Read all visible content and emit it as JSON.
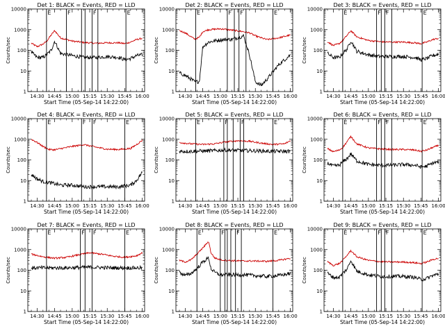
{
  "figure": {
    "background": "#ffffff",
    "axis_color": "#000000",
    "events_color": "#000000",
    "lld_color": "#cc0000",
    "xaxis_title": "Start Time (05-Sep-14 14:22:00)",
    "ylabel": "Counts/sec",
    "x_tick_labels": [
      "14:30",
      "14:45",
      "15:00",
      "15:15",
      "15:30",
      "15:45",
      "16:00"
    ],
    "y_tick_labels": [
      "1",
      "10",
      "100",
      "1000",
      "10000"
    ]
  },
  "chart_data": [
    {
      "type": "line",
      "title": "Det 1: BLACK = Events, RED = LLD",
      "xlabel": "Start Time (05-Sep-14 14:22:00)",
      "ylabel": "Counts/sec",
      "xlim": [
        "14:22",
        "16:02"
      ],
      "ylim": [
        1,
        10000
      ],
      "y_scale": "log",
      "x": [
        "14:25",
        "14:30",
        "14:35",
        "14:38",
        "14:42",
        "14:45",
        "14:50",
        "15:00",
        "15:10",
        "15:20",
        "15:30",
        "15:40",
        "15:45",
        "15:50",
        "15:55",
        "16:00"
      ],
      "series": [
        {
          "name": "Events",
          "values": [
            80,
            45,
            45,
            60,
            100,
            280,
            70,
            55,
            45,
            45,
            50,
            45,
            35,
            40,
            55,
            60
          ]
        },
        {
          "name": "LLD",
          "values": [
            220,
            150,
            200,
            270,
            550,
            900,
            400,
            280,
            240,
            220,
            230,
            230,
            210,
            250,
            330,
            380
          ]
        }
      ],
      "markers": {
        "times": [
          "14:38",
          "14:55",
          "15:08",
          "15:11",
          "15:17",
          "15:22",
          "15:46"
        ],
        "labels": [
          "E",
          "F",
          "",
          "",
          "F",
          "",
          "E"
        ]
      },
      "grid": false
    },
    {
      "type": "line",
      "title": "Det 2: BLACK = Events, RED = LLD",
      "xlabel": "Start Time (05-Sep-14 14:22:00)",
      "ylabel": "Counts/sec",
      "xlim": [
        "14:22",
        "16:02"
      ],
      "ylim": [
        1,
        10000
      ],
      "y_scale": "log",
      "x": [
        "14:25",
        "14:30",
        "14:35",
        "14:38",
        "14:42",
        "14:45",
        "14:50",
        "15:00",
        "15:10",
        "15:20",
        "15:25",
        "15:30",
        "15:35",
        "15:40",
        "15:50",
        "16:00"
      ],
      "series": [
        {
          "name": "Events",
          "values": [
            8,
            6,
            4,
            3,
            3,
            150,
            250,
            320,
            340,
            500,
            60,
            3,
            2,
            4,
            20,
            60
          ]
        },
        {
          "name": "LLD",
          "values": [
            900,
            700,
            450,
            350,
            420,
            800,
            1000,
            1100,
            950,
            800,
            700,
            500,
            400,
            330,
            400,
            550
          ]
        }
      ],
      "markers": {
        "times": [
          "14:39",
          "15:06",
          "15:12",
          "15:16",
          "15:22",
          "15:45"
        ],
        "labels": [
          "E",
          "F",
          "",
          "F",
          "",
          "E"
        ]
      },
      "grid": false
    },
    {
      "type": "line",
      "title": "Det 3: BLACK = Events, RED = LLD",
      "xlabel": "Start Time (05-Sep-14 14:22:00)",
      "ylabel": "Counts/sec",
      "xlim": [
        "14:22",
        "16:02"
      ],
      "ylim": [
        1,
        10000
      ],
      "y_scale": "log",
      "x": [
        "14:25",
        "14:30",
        "14:35",
        "14:38",
        "14:42",
        "14:45",
        "14:50",
        "15:00",
        "15:10",
        "15:20",
        "15:30",
        "15:40",
        "15:45",
        "15:50",
        "15:55",
        "16:00"
      ],
      "series": [
        {
          "name": "Events",
          "values": [
            70,
            45,
            45,
            70,
            120,
            300,
            90,
            60,
            50,
            50,
            50,
            45,
            35,
            40,
            55,
            65
          ]
        },
        {
          "name": "LLD",
          "values": [
            260,
            170,
            210,
            300,
            550,
            900,
            450,
            300,
            260,
            250,
            250,
            230,
            210,
            250,
            330,
            380
          ]
        }
      ],
      "markers": {
        "times": [
          "14:38",
          "15:07",
          "15:11",
          "15:14",
          "15:20",
          "15:46"
        ],
        "labels": [
          "E",
          "F",
          "",
          "F",
          "",
          "E"
        ]
      },
      "grid": false
    },
    {
      "type": "line",
      "title": "Det 4: BLACK = Events, RED = LLD",
      "xlabel": "Start Time (05-Sep-14 14:22:00)",
      "ylabel": "Counts/sec",
      "xlim": [
        "14:22",
        "16:02"
      ],
      "ylim": [
        1,
        10000
      ],
      "y_scale": "log",
      "x": [
        "14:25",
        "14:30",
        "14:35",
        "14:40",
        "14:45",
        "14:50",
        "15:00",
        "15:10",
        "15:20",
        "15:30",
        "15:40",
        "15:50",
        "15:55",
        "16:00"
      ],
      "series": [
        {
          "name": "Events",
          "values": [
            20,
            12,
            9,
            8,
            7,
            6,
            6,
            5,
            5,
            5,
            5,
            6,
            10,
            25
          ]
        },
        {
          "name": "LLD",
          "values": [
            1000,
            700,
            450,
            320,
            310,
            350,
            450,
            550,
            420,
            330,
            320,
            360,
            550,
            900
          ]
        }
      ],
      "markers": {
        "times": [
          "14:38",
          "15:08",
          "15:17",
          "15:45"
        ],
        "labels": [
          "E",
          "F",
          "F",
          "E"
        ]
      },
      "grid": false
    },
    {
      "type": "line",
      "title": "Det 5: BLACK = Events, RED = LLD",
      "xlabel": "Start Time (05-Sep-14 14:22:00)",
      "ylabel": "Counts/sec",
      "xlim": [
        "14:22",
        "16:02"
      ],
      "ylim": [
        1,
        10000
      ],
      "y_scale": "log",
      "x": [
        "14:25",
        "14:35",
        "14:45",
        "14:55",
        "15:05",
        "15:15",
        "15:25",
        "15:35",
        "15:45",
        "15:55",
        "16:00"
      ],
      "series": [
        {
          "name": "Events",
          "values": [
            260,
            260,
            270,
            280,
            300,
            290,
            280,
            270,
            260,
            260,
            260
          ]
        },
        {
          "name": "LLD",
          "values": [
            700,
            600,
            560,
            600,
            750,
            850,
            800,
            650,
            560,
            600,
            850
          ]
        }
      ],
      "markers": {
        "times": [
          "14:39",
          "15:03",
          "15:06",
          "15:11",
          "15:17",
          "15:20",
          "15:45"
        ],
        "labels": [
          "E",
          "F",
          "",
          "",
          "F",
          "",
          "E"
        ]
      },
      "grid": false
    },
    {
      "type": "line",
      "title": "Det 6: BLACK = Events, RED = LLD",
      "xlabel": "Start Time (05-Sep-14 14:22:00)",
      "ylabel": "Counts/sec",
      "xlim": [
        "14:22",
        "16:02"
      ],
      "ylim": [
        1,
        10000
      ],
      "y_scale": "log",
      "x": [
        "14:25",
        "14:30",
        "14:35",
        "14:38",
        "14:42",
        "14:45",
        "14:50",
        "15:00",
        "15:10",
        "15:20",
        "15:30",
        "15:40",
        "15:45",
        "15:50",
        "15:55",
        "16:00"
      ],
      "series": [
        {
          "name": "Events",
          "values": [
            70,
            50,
            55,
            80,
            120,
            200,
            90,
            60,
            55,
            55,
            60,
            55,
            45,
            50,
            70,
            80
          ]
        },
        {
          "name": "LLD",
          "values": [
            350,
            250,
            300,
            400,
            800,
            1400,
            600,
            380,
            340,
            320,
            320,
            300,
            260,
            300,
            400,
            500
          ]
        }
      ],
      "markers": {
        "times": [
          "14:38",
          "15:07",
          "15:11",
          "15:14",
          "15:20",
          "15:46"
        ],
        "labels": [
          "E",
          "F",
          "",
          "F",
          "",
          "E"
        ]
      },
      "grid": false
    },
    {
      "type": "line",
      "title": "Det 7: BLACK = Events, RED = LLD",
      "xlabel": "Start Time (05-Sep-14 14:22:00)",
      "ylabel": "Counts/sec",
      "xlim": [
        "14:22",
        "16:02"
      ],
      "ylim": [
        1,
        10000
      ],
      "y_scale": "log",
      "x": [
        "14:25",
        "14:35",
        "14:45",
        "14:55",
        "15:05",
        "15:15",
        "15:25",
        "15:35",
        "15:45",
        "15:55",
        "16:00"
      ],
      "series": [
        {
          "name": "Events",
          "values": [
            130,
            130,
            130,
            130,
            135,
            140,
            135,
            130,
            130,
            130,
            130
          ]
        },
        {
          "name": "LLD",
          "values": [
            600,
            450,
            380,
            420,
            550,
            700,
            600,
            480,
            420,
            500,
            700
          ]
        }
      ],
      "markers": {
        "times": [
          "14:38",
          "15:07",
          "15:11",
          "15:17",
          "15:45"
        ],
        "labels": [
          "E",
          "F",
          "",
          "F",
          "E"
        ]
      },
      "grid": false
    },
    {
      "type": "line",
      "title": "Det 8: BLACK = Events, RED = LLD",
      "xlabel": "Start Time (05-Sep-14 14:22:00)",
      "ylabel": "Counts/sec",
      "xlim": [
        "14:22",
        "16:02"
      ],
      "ylim": [
        1,
        10000
      ],
      "y_scale": "log",
      "x": [
        "14:25",
        "14:30",
        "14:35",
        "14:40",
        "14:45",
        "14:50",
        "14:52",
        "14:55",
        "15:00",
        "15:05",
        "15:10",
        "15:20",
        "15:30",
        "15:40",
        "15:50",
        "16:00"
      ],
      "series": [
        {
          "name": "Events",
          "values": [
            80,
            55,
            70,
            120,
            250,
            400,
            120,
            80,
            60,
            60,
            60,
            60,
            55,
            50,
            55,
            70
          ]
        },
        {
          "name": "LLD",
          "values": [
            300,
            250,
            320,
            600,
            1200,
            2500,
            700,
            400,
            320,
            300,
            290,
            280,
            280,
            270,
            300,
            380
          ]
        }
      ],
      "markers": {
        "times": [
          "14:40",
          "15:00",
          "15:04",
          "15:06",
          "15:09",
          "15:13",
          "15:18",
          "15:45"
        ],
        "labels": [
          "E",
          "F",
          "",
          "",
          "",
          "F",
          "",
          "E"
        ]
      },
      "grid": false
    },
    {
      "type": "line",
      "title": "Det 9: BLACK = Events, RED = LLD",
      "xlabel": "Start Time (05-Sep-14 14:22:00)",
      "ylabel": "Counts/sec",
      "xlim": [
        "14:22",
        "16:02"
      ],
      "ylim": [
        1,
        10000
      ],
      "y_scale": "log",
      "x": [
        "14:25",
        "14:30",
        "14:35",
        "14:38",
        "14:42",
        "14:45",
        "14:50",
        "15:00",
        "15:10",
        "15:20",
        "15:30",
        "15:40",
        "15:45",
        "15:50",
        "15:55",
        "16:00"
      ],
      "series": [
        {
          "name": "Events",
          "values": [
            70,
            45,
            45,
            70,
            120,
            300,
            90,
            60,
            50,
            50,
            50,
            45,
            35,
            40,
            55,
            65
          ]
        },
        {
          "name": "LLD",
          "values": [
            260,
            170,
            210,
            300,
            550,
            900,
            450,
            300,
            260,
            250,
            250,
            230,
            210,
            250,
            330,
            380
          ]
        }
      ],
      "markers": {
        "times": [
          "14:38",
          "15:07",
          "15:11",
          "15:14",
          "15:20",
          "15:46"
        ],
        "labels": [
          "E",
          "F",
          "",
          "F",
          "",
          "E"
        ]
      },
      "grid": false
    }
  ]
}
